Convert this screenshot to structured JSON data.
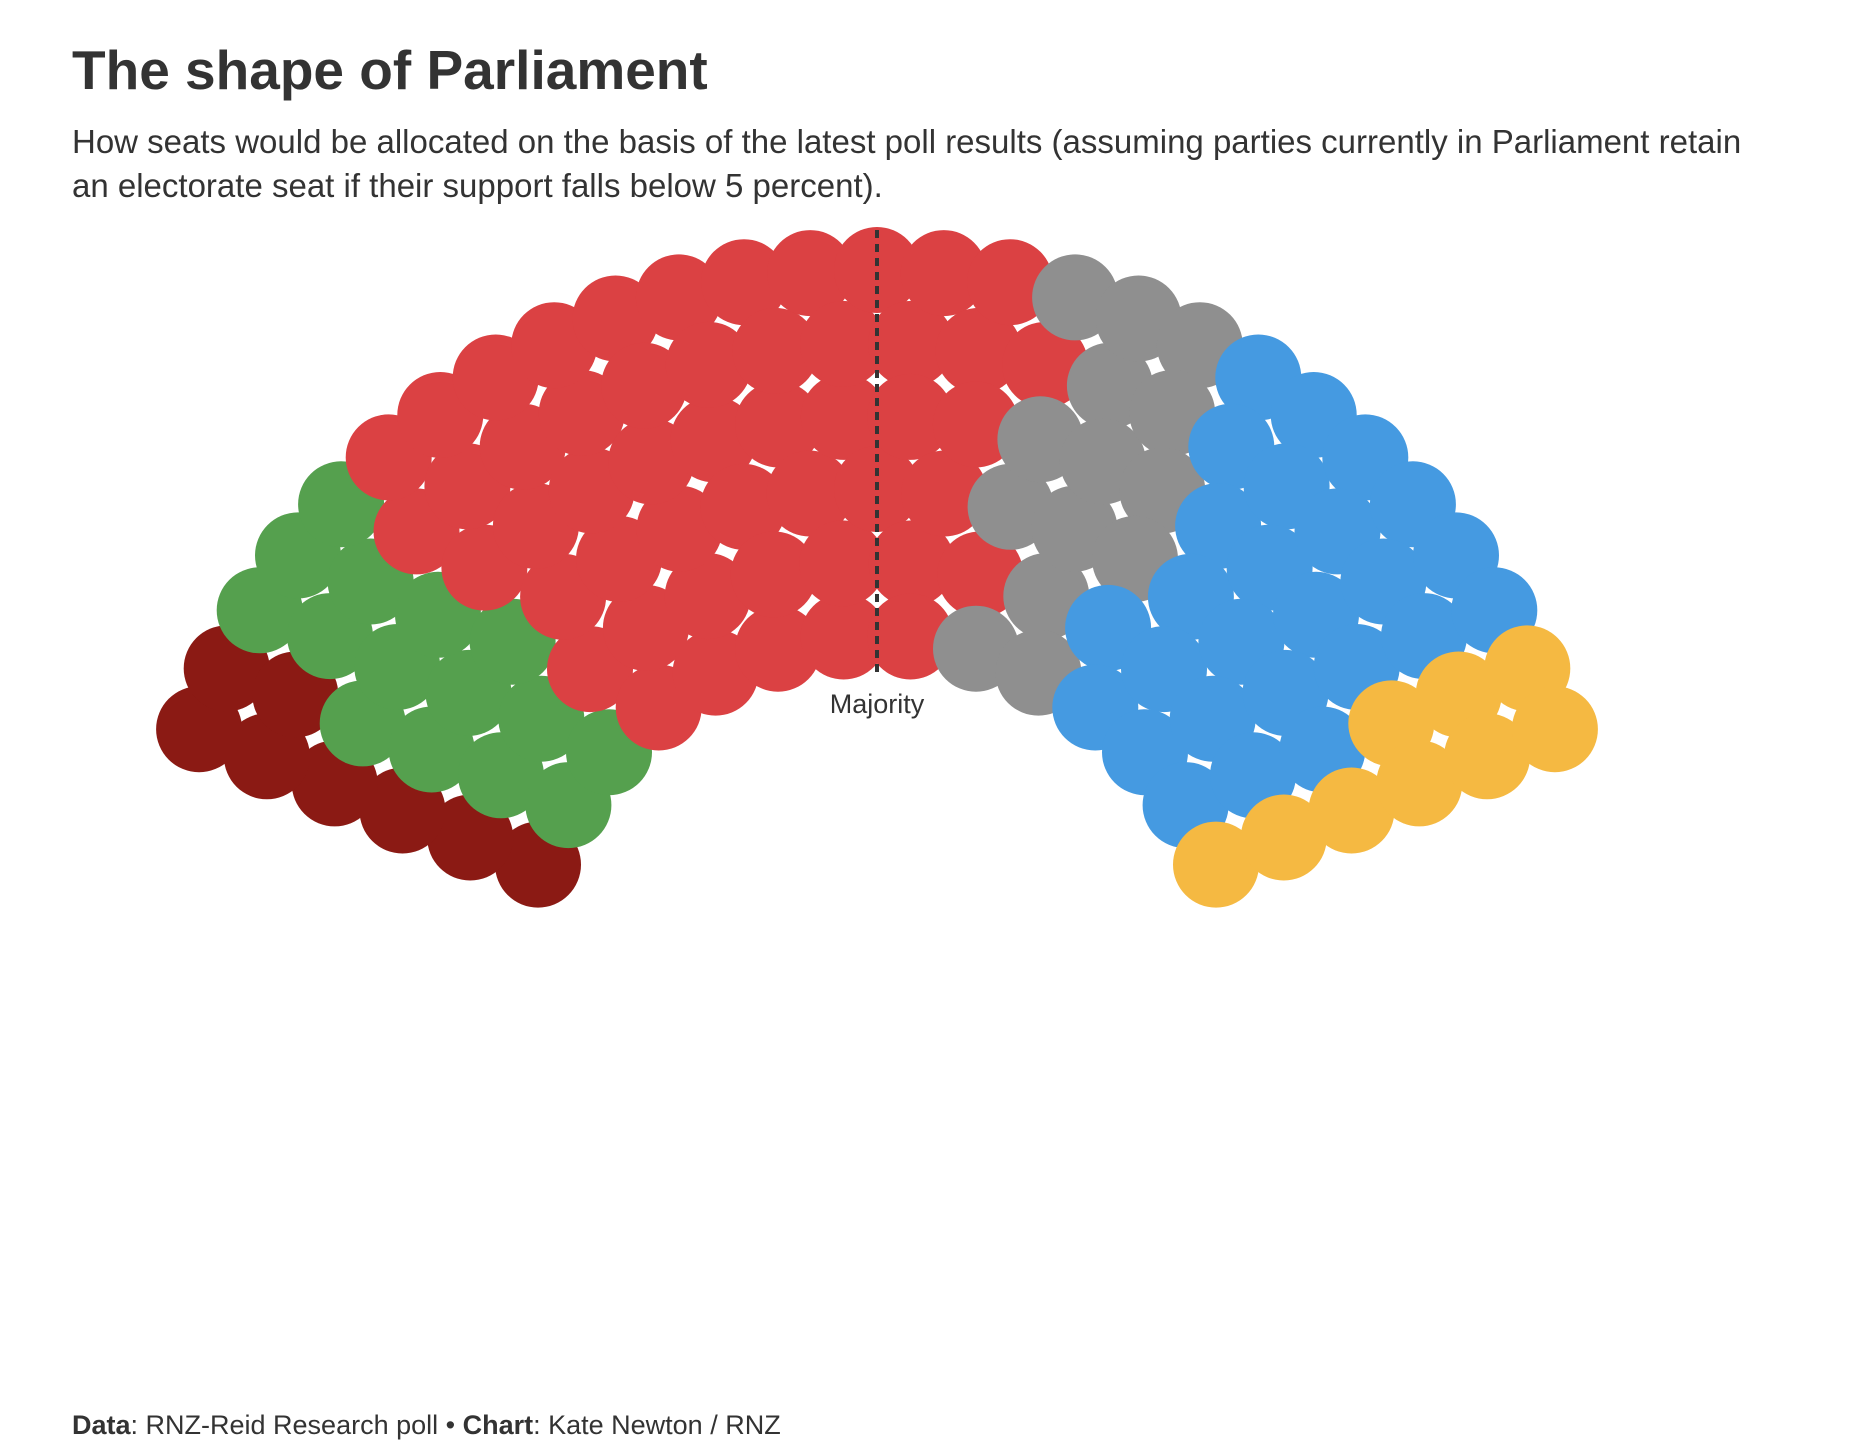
{
  "title": "The shape of Parliament",
  "subtitle": "How seats would be allocated on the basis of the latest poll results (assuming parties currently in Parliament retain an electorate seat if their support falls below 5 percent).",
  "footer": {
    "data_label": "Data",
    "data_value": ": RNZ-Reid Research poll • ",
    "chart_label": "Chart",
    "chart_value": ": Kate Newton / RNZ"
  },
  "chart_data": {
    "type": "parliament",
    "title": "The shape of Parliament",
    "total_seats": 122,
    "majority_label": "Majority",
    "majority_seats": 62,
    "legend": "none",
    "series": [
      {
        "values": [
          8
        ],
        "color": "#8B1A14"
      },
      {
        "values": [
          15
        ],
        "color": "#55A04E"
      },
      {
        "values": [
          50
        ],
        "color": "#DB4143"
      },
      {
        "values": [
          14
        ],
        "color": "#8F8F8F"
      },
      {
        "values": [
          26
        ],
        "color": "#459AE1"
      },
      {
        "values": [
          9
        ],
        "color": "#F5B942"
      }
    ]
  }
}
